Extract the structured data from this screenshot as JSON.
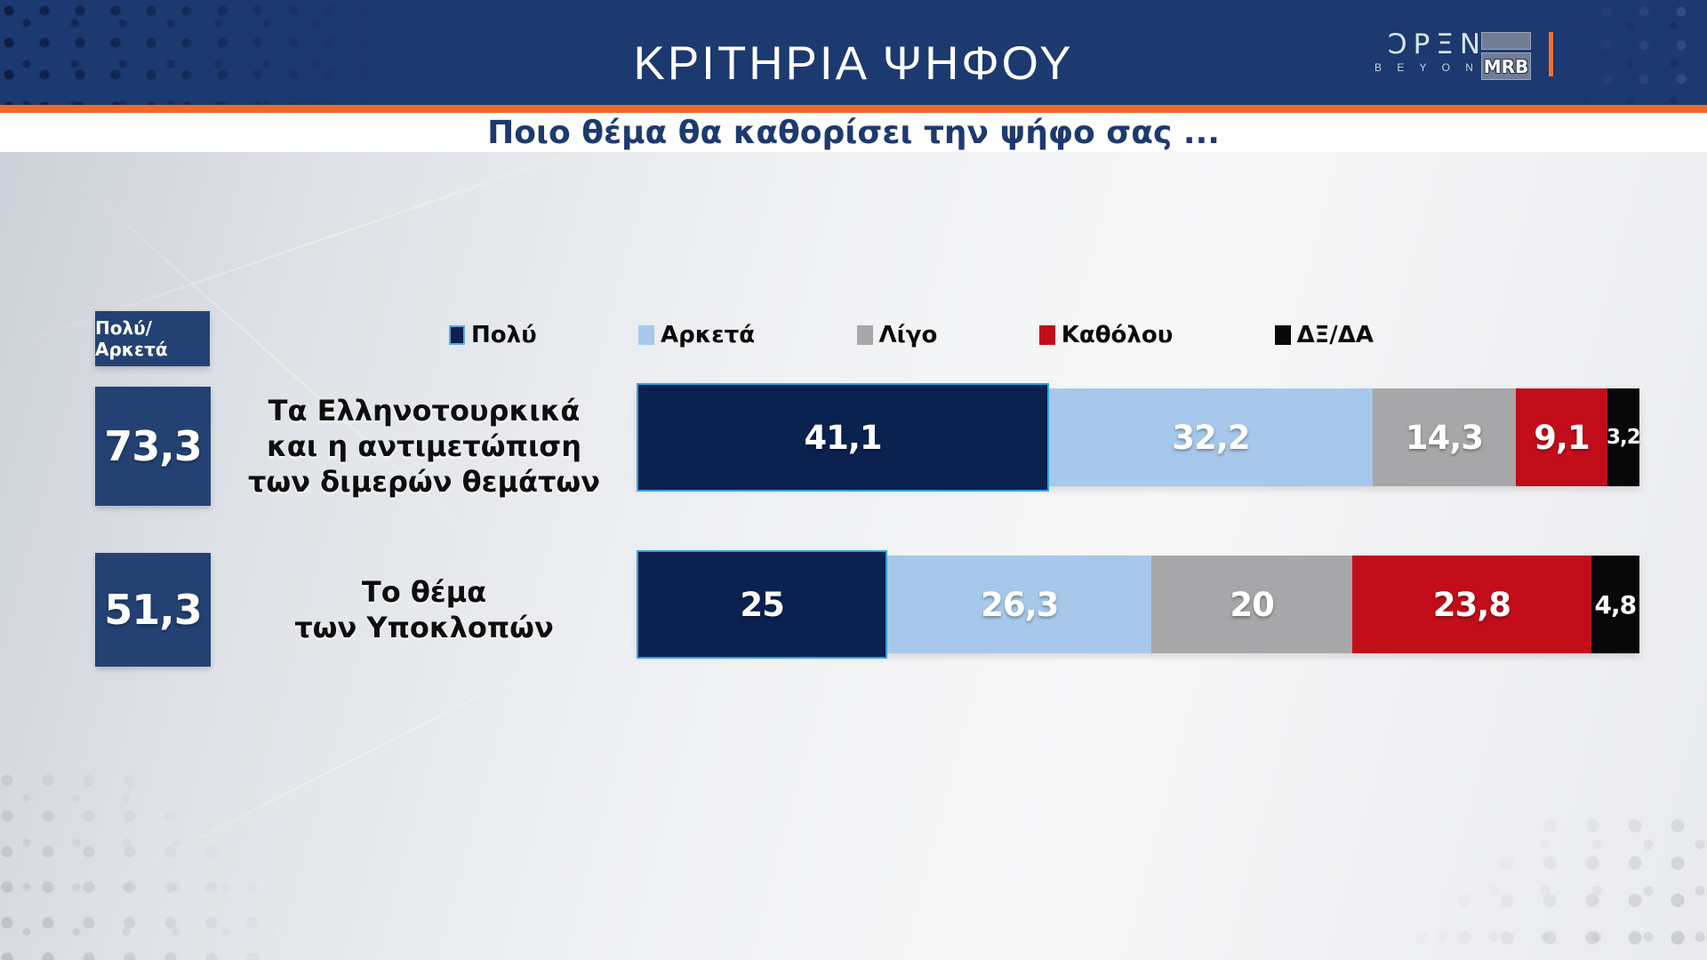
{
  "header": {
    "title": "ΚΡΙΤΗΡΙΑ ΨΗΦΟΥ",
    "open_logo": {
      "display": "ƆPΞN",
      "tagline": "B E Y O N D"
    },
    "mrb_logo": "MRB",
    "colors": {
      "band": "#1c3970",
      "accent_orange": "#ed6b28"
    }
  },
  "question": {
    "text": "Ποιο θέμα θα καθορίσει την ψήφο σας ...",
    "color": "#1d3a70"
  },
  "summary_chip": {
    "label": "Πολύ/Αρκετά",
    "color": "#234273"
  },
  "chart_data": {
    "type": "bar",
    "orientation": "horizontal",
    "stacked": true,
    "unit": "percent",
    "xlim": [
      0,
      100
    ],
    "legend_position": "top",
    "categories": [
      "Τα Ελληνοτουρκικά και η αντιμετώπιση των διμερών θεμάτων",
      "Το θέμα των Υποκλοπών"
    ],
    "category_lines": [
      [
        "Τα Ελληνοτουρκικά",
        "και η αντιμετώπιση",
        "των διμερών θεμάτων"
      ],
      [
        "Το θέμα",
        "των Υποκλοπών"
      ]
    ],
    "summary_values": {
      "label": "Πολύ/Αρκετά",
      "values": [
        73.3,
        51.3
      ],
      "display": [
        "73,3",
        "51,3"
      ]
    },
    "series": [
      {
        "name": "Πολύ",
        "color": "#0b2150",
        "values": [
          41.1,
          25
        ],
        "labels": [
          "41,1",
          "25"
        ]
      },
      {
        "name": "Αρκετά",
        "color": "#a7c8ea",
        "values": [
          32.2,
          26.3
        ],
        "labels": [
          "32,2",
          "26,3"
        ]
      },
      {
        "name": "Λίγο",
        "color": "#a7a7a9",
        "values": [
          14.3,
          20
        ],
        "labels": [
          "14,3",
          "20"
        ]
      },
      {
        "name": "Καθόλου",
        "color": "#c30d1a",
        "values": [
          9.1,
          23.8
        ],
        "labels": [
          "9,1",
          "23,8"
        ]
      },
      {
        "name": "ΔΞ/ΔΑ",
        "color": "#080808",
        "values": [
          3.2,
          4.8
        ],
        "labels": [
          "3,2",
          "4,8"
        ]
      }
    ]
  }
}
